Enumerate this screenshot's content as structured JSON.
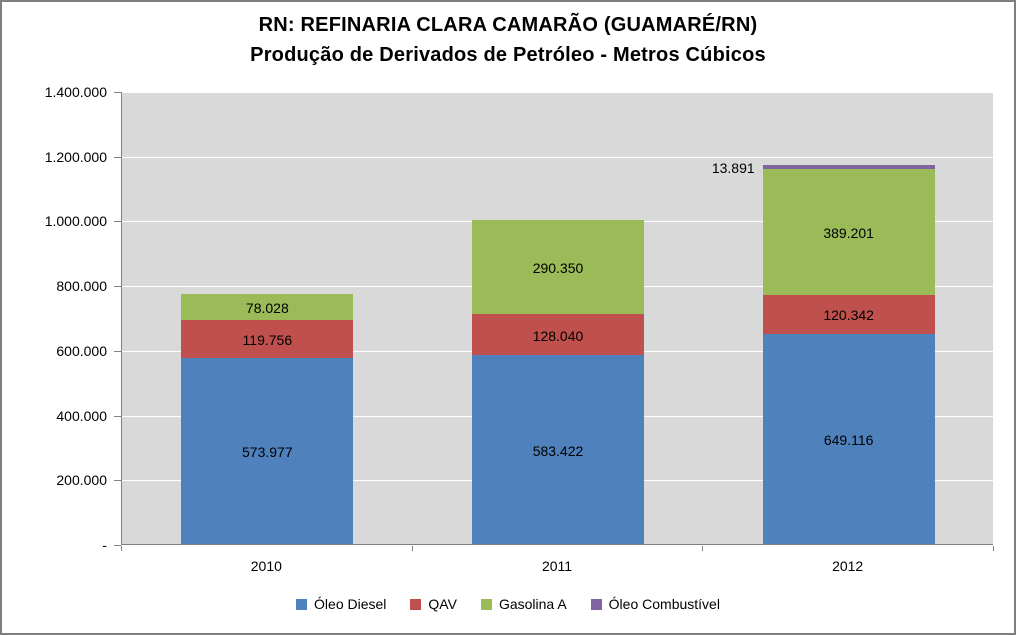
{
  "chart_data": {
    "type": "bar",
    "stacked": true,
    "title": "RN: REFINARIA CLARA CAMARÃO (GUAMARÉ/RN)",
    "subtitle": "Produção de Derivados de Petróleo - Metros Cúbicos",
    "categories": [
      "2010",
      "2011",
      "2012"
    ],
    "series": [
      {
        "name": "Óleo Diesel",
        "color": "#4F81BD",
        "values": [
          573977,
          583422,
          649116
        ],
        "labels": [
          "573.977",
          "583.422",
          "649.116"
        ]
      },
      {
        "name": "QAV",
        "color": "#C0504D",
        "values": [
          119756,
          128040,
          120342
        ],
        "labels": [
          "119.756",
          "128.040",
          "120.342"
        ]
      },
      {
        "name": "Gasolina A",
        "color": "#9BBB59",
        "values": [
          78028,
          290350,
          389201
        ],
        "labels": [
          "78.028",
          "290.350",
          "389.201"
        ]
      },
      {
        "name": "Óleo Combustível",
        "color": "#8064A2",
        "values": [
          0,
          0,
          13891
        ],
        "labels": [
          "",
          "",
          "13.891"
        ]
      }
    ],
    "ylim": [
      0,
      1400000
    ],
    "ytick_step": 200000,
    "ytick_labels": [
      "-",
      "200.000",
      "400.000",
      "600.000",
      "800.000",
      "1.000.000",
      "1.200.000",
      "1.400.000"
    ],
    "xlabel": "",
    "ylabel": "",
    "grid": true,
    "legend_position": "bottom",
    "plot_bg": "#D9D9D9",
    "gridline_color": "#FFFFFF",
    "axis_color": "#808080",
    "text_color": "#000000"
  }
}
